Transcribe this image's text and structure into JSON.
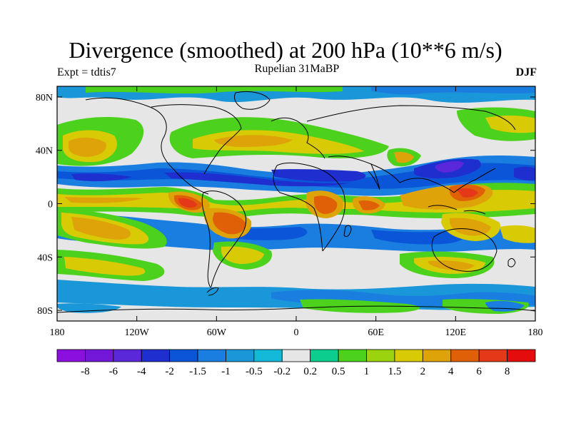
{
  "figure": {
    "title": "Divergence (smoothed) at 200 hPa (10**6 m/s)",
    "subtitle": "Rupelian  31MaBP",
    "left_label": "Expt = tdtis7",
    "right_label": "DJF"
  },
  "axes": {
    "lat_ticks": [
      "80N",
      "40N",
      "0",
      "40S",
      "80S"
    ],
    "lon_ticks": [
      "180",
      "120W",
      "60W",
      "0",
      "60E",
      "120E",
      "180"
    ]
  },
  "colorbar": {
    "colors": [
      "#8b10e0",
      "#7318d8",
      "#5a28d8",
      "#1e2ecf",
      "#0b56d8",
      "#1a7ee0",
      "#1a97d9",
      "#14b9d9",
      "#e6e6e6",
      "#0ccd8e",
      "#4cd11c",
      "#9bd30f",
      "#d8cb06",
      "#dfa30a",
      "#e06008",
      "#e43818",
      "#e40c0c"
    ],
    "labels": [
      "-8",
      "-6",
      "-4",
      "-2",
      "-1.5",
      "-1",
      "-0.5",
      "-0.2",
      "0.2",
      "0.5",
      "1",
      "1.5",
      "2",
      "4",
      "6",
      "8"
    ]
  },
  "chart_data": {
    "type": "heatmap",
    "title": "Divergence (smoothed) at 200 hPa (10**6 m/s)",
    "subtitle": "Rupelian  31MaBP",
    "experiment": "Expt = tdtis7",
    "season": "DJF",
    "x_ticks": [
      "180",
      "120W",
      "60W",
      "0",
      "60E",
      "120E",
      "180"
    ],
    "y_ticks": [
      "80N",
      "40N",
      "0",
      "40S",
      "80S"
    ],
    "xlim": [
      -180,
      180
    ],
    "ylim": [
      -88,
      88
    ],
    "contour_levels": [
      -8,
      -6,
      -4,
      -2,
      -1.5,
      -1,
      -0.5,
      -0.2,
      0.2,
      0.5,
      1,
      1.5,
      2,
      4,
      6,
      8
    ],
    "grid": false
  }
}
